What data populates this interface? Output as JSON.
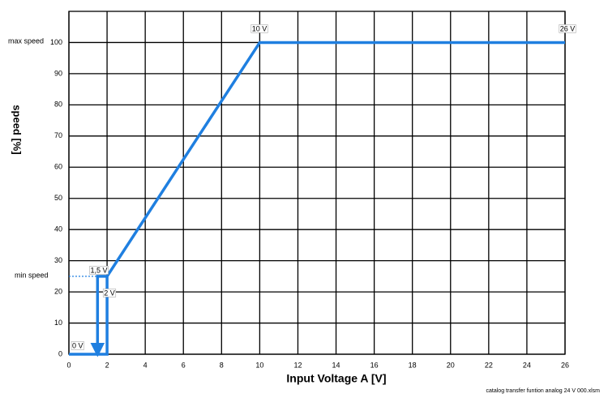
{
  "chart_data": {
    "type": "line",
    "xlabel": "Input Voltage A [V]",
    "ylabel": "speed [%]",
    "xlim": [
      0,
      26
    ],
    "xticks": [
      0,
      2,
      4,
      6,
      8,
      10,
      12,
      14,
      16,
      18,
      20,
      22,
      24,
      26
    ],
    "ylim": [
      0,
      110
    ],
    "yticks": [
      0,
      10,
      20,
      30,
      40,
      50,
      60,
      70,
      80,
      90,
      100
    ],
    "grid": true,
    "series": [
      {
        "color": "#1f7fe0",
        "x": [
          0,
          2,
          2,
          10,
          26
        ],
        "values": [
          0,
          0,
          25,
          100,
          100
        ]
      },
      {
        "color": "#1f7fe0",
        "x": [
          2,
          1.5,
          1.5
        ],
        "values": [
          25,
          25,
          0
        ],
        "arrow": true
      },
      {
        "color": "#1f7fe0",
        "x": [
          0,
          1.5
        ],
        "values": [
          25,
          25
        ],
        "dashed": true
      }
    ],
    "annotations": [
      "max speed",
      "min speed",
      "10 V",
      "26 V",
      "1,5 V",
      "2 V",
      "0 V"
    ],
    "footnote": "catalog transfer funtion analog 24 V 000.xlsm"
  }
}
